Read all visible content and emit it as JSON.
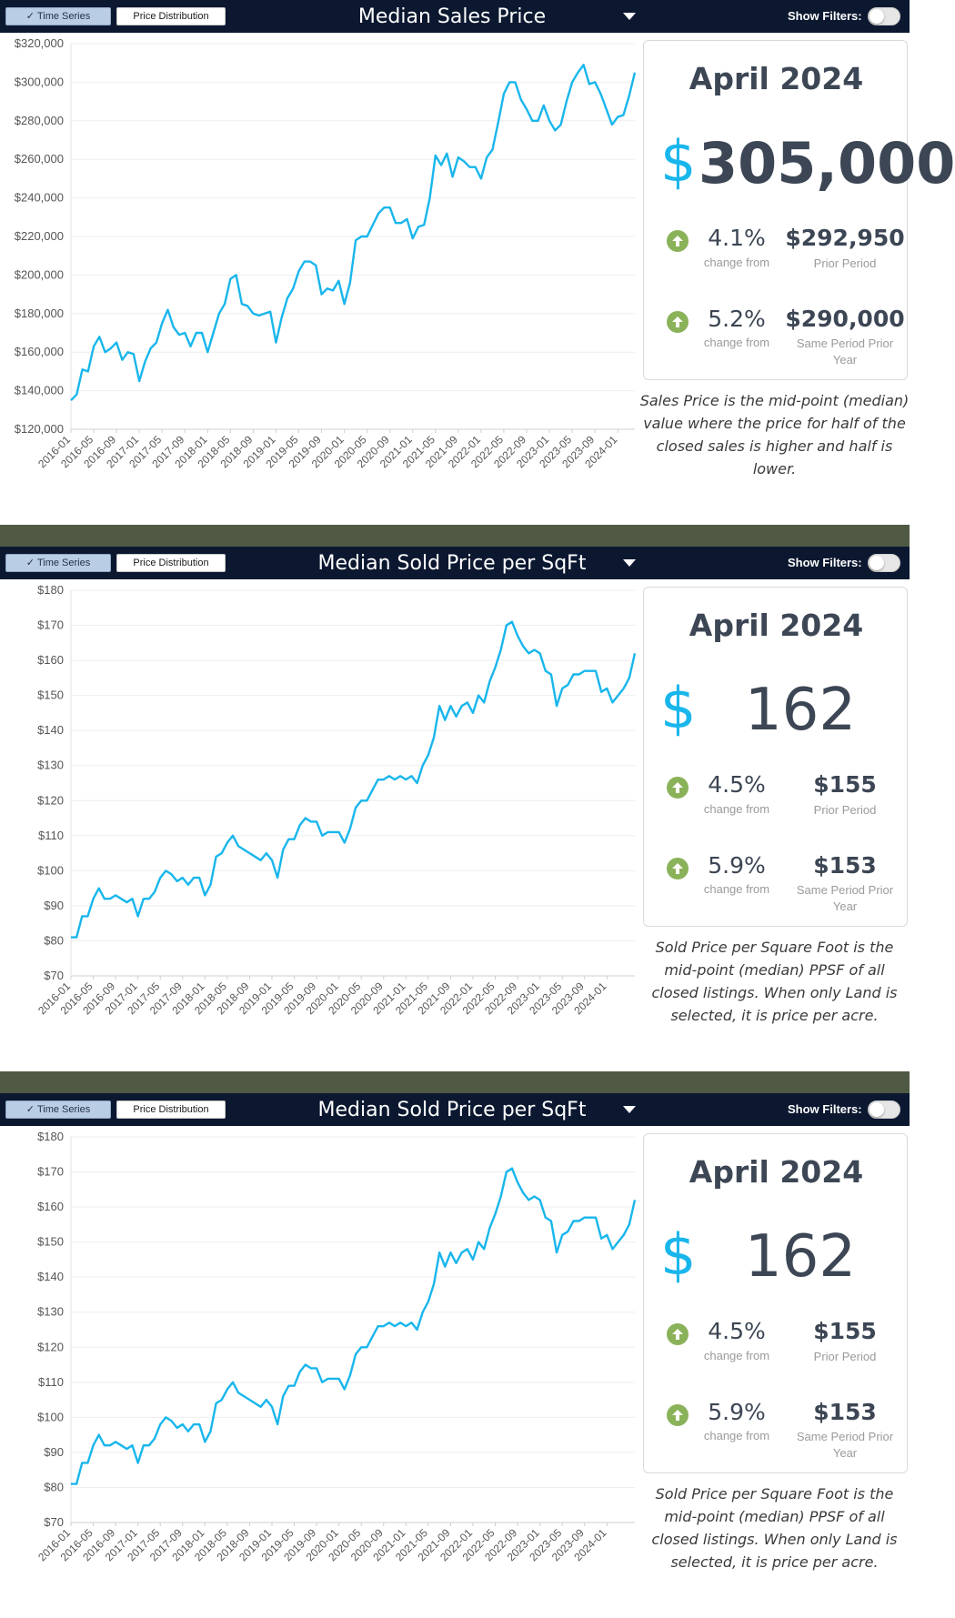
{
  "panels": [
    {
      "tabs": {
        "time_series": "Time Series",
        "price_distribution": "Price Distribution"
      },
      "title": "Median Sales Price",
      "show_filters_label": "Show Filters:",
      "card": {
        "period": "April 2024",
        "currency_symbol": "$",
        "value": "305,000",
        "stats": [
          {
            "icon": "arrow-up-icon",
            "pct": "4.1%",
            "pct_label": "change from",
            "value": "$292,950",
            "caption": "Prior Period"
          },
          {
            "icon": "arrow-up-icon",
            "pct": "5.2%",
            "pct_label": "change from",
            "value": "$290,000",
            "caption": "Same Period Prior Year"
          }
        ],
        "up_color": "#8ab259"
      },
      "description": "Sales Price is the mid-point (median) value where the price for half of the closed sales is higher and half is lower.",
      "chart_data": {
        "type": "line",
        "title": "Median Sales Price",
        "x_start": "2016-01",
        "x_tick_labels": [
          "2016-01",
          "2016-05",
          "2016-09",
          "2017-01",
          "2017-05",
          "2017-09",
          "2018-01",
          "2018-05",
          "2018-09",
          "2019-01",
          "2019-05",
          "2019-09",
          "2020-01",
          "2020-05",
          "2020-09",
          "2021-01",
          "2021-05",
          "2021-09",
          "2022-01",
          "2022-05",
          "2022-09",
          "2023-01",
          "2023-05",
          "2023-09",
          "2024-01"
        ],
        "y_ticks": [
          120000,
          140000,
          160000,
          180000,
          200000,
          220000,
          240000,
          260000,
          280000,
          300000,
          320000
        ],
        "y_tick_labels": [
          "$120,000",
          "$140,000",
          "$160,000",
          "$180,000",
          "$200,000",
          "$220,000",
          "$240,000",
          "$260,000",
          "$280,000",
          "$300,000",
          "$320,000"
        ],
        "ylim": [
          120000,
          320000
        ],
        "grid": true,
        "color": "#19b6ec",
        "values": [
          135000,
          138000,
          151000,
          150000,
          163000,
          168000,
          160000,
          162000,
          165000,
          156000,
          160000,
          159000,
          145000,
          155000,
          162000,
          165000,
          175000,
          182000,
          173000,
          169000,
          170000,
          163000,
          170000,
          170000,
          160000,
          170000,
          180000,
          185000,
          198000,
          200000,
          185000,
          184000,
          180000,
          179000,
          180000,
          181000,
          165000,
          178000,
          188000,
          193000,
          202000,
          207000,
          207000,
          205000,
          190000,
          193000,
          192000,
          197000,
          185000,
          196000,
          218000,
          220000,
          220000,
          226000,
          232000,
          235000,
          235000,
          227000,
          227000,
          229000,
          219000,
          225000,
          226000,
          240000,
          262000,
          257000,
          263000,
          251000,
          261000,
          259000,
          256000,
          256000,
          250000,
          261000,
          265000,
          279000,
          294000,
          300000,
          300000,
          291000,
          286000,
          280000,
          280000,
          288000,
          280000,
          275000,
          278000,
          290000,
          300000,
          305000,
          309000,
          299000,
          300000,
          294000,
          286000,
          278000,
          282000,
          283000,
          293000,
          305000
        ]
      }
    },
    {
      "tabs": {
        "time_series": "Time Series",
        "price_distribution": "Price Distribution"
      },
      "title": "Median Sold Price per SqFt",
      "show_filters_label": "Show Filters:",
      "card": {
        "period": "April 2024",
        "currency_symbol": "$",
        "value": "162",
        "stats": [
          {
            "icon": "arrow-up-icon",
            "pct": "4.5%",
            "pct_label": "change from",
            "value": "$155",
            "caption": "Prior Period"
          },
          {
            "icon": "arrow-up-icon",
            "pct": "5.9%",
            "pct_label": "change from",
            "value": "$153",
            "caption": "Same Period Prior Year"
          }
        ],
        "up_color": "#8ab259"
      },
      "description": "Sold Price per Square Foot is the mid-point (median) PPSF of all closed listings. When only Land is selected, it is price per acre.",
      "chart_data": {
        "type": "line",
        "title": "Median Sold Price per SqFt",
        "x_start": "2016-01",
        "x_tick_labels": [
          "2016-01",
          "2016-05",
          "2016-09",
          "2017-01",
          "2017-05",
          "2017-09",
          "2018-01",
          "2018-05",
          "2018-09",
          "2019-01",
          "2019-05",
          "2019-09",
          "2020-01",
          "2020-05",
          "2020-09",
          "2021-01",
          "2021-05",
          "2021-09",
          "2022-01",
          "2022-05",
          "2022-09",
          "2023-01",
          "2023-05",
          "2023-09",
          "2024-01"
        ],
        "y_ticks": [
          70,
          80,
          90,
          100,
          110,
          120,
          130,
          140,
          150,
          160,
          170,
          180
        ],
        "y_tick_labels": [
          "$70",
          "$80",
          "$90",
          "$100",
          "$110",
          "$120",
          "$130",
          "$140",
          "$150",
          "$160",
          "$170",
          "$180"
        ],
        "ylim": [
          70,
          180
        ],
        "grid": true,
        "color": "#19b6ec",
        "values": [
          81,
          81,
          87,
          87,
          92,
          95,
          92,
          92,
          93,
          92,
          91,
          92,
          87,
          92,
          92,
          94,
          98,
          100,
          99,
          97,
          98,
          96,
          98,
          98,
          93,
          96,
          104,
          105,
          108,
          110,
          107,
          106,
          105,
          104,
          103,
          105,
          103,
          98,
          106,
          109,
          109,
          113,
          115,
          114,
          114,
          110,
          111,
          111,
          111,
          108,
          112,
          118,
          120,
          120,
          123,
          126,
          126,
          127,
          126,
          127,
          126,
          127,
          125,
          130,
          133,
          138,
          147,
          143,
          147,
          144,
          147,
          148,
          145,
          150,
          148,
          154,
          158,
          163,
          170,
          171,
          167,
          164,
          162,
          163,
          162,
          157,
          156,
          147,
          152,
          153,
          156,
          156,
          157,
          157,
          157,
          151,
          152,
          148,
          150,
          152,
          155,
          162
        ]
      }
    },
    {
      "tabs": {
        "time_series": "Time Series",
        "price_distribution": "Price Distribution"
      },
      "title": "Median Sold Price per SqFt",
      "show_filters_label": "Show Filters:",
      "card": {
        "period": "April 2024",
        "currency_symbol": "$",
        "value": "162",
        "stats": [
          {
            "icon": "arrow-up-icon",
            "pct": "4.5%",
            "pct_label": "change from",
            "value": "$155",
            "caption": "Prior Period"
          },
          {
            "icon": "arrow-up-icon",
            "pct": "5.9%",
            "pct_label": "change from",
            "value": "$153",
            "caption": "Same Period Prior Year"
          }
        ],
        "up_color": "#8ab259"
      },
      "description": "Sold Price per Square Foot is the mid-point (median) PPSF of all closed listings. When only Land is selected, it is price per acre.",
      "chart_data": {
        "type": "line",
        "title": "Median Sold Price per SqFt",
        "x_start": "2016-01",
        "x_tick_labels": [
          "2016-01",
          "2016-05",
          "2016-09",
          "2017-01",
          "2017-05",
          "2017-09",
          "2018-01",
          "2018-05",
          "2018-09",
          "2019-01",
          "2019-05",
          "2019-09",
          "2020-01",
          "2020-05",
          "2020-09",
          "2021-01",
          "2021-05",
          "2021-09",
          "2022-01",
          "2022-05",
          "2022-09",
          "2023-01",
          "2023-05",
          "2023-09",
          "2024-01"
        ],
        "y_ticks": [
          70,
          80,
          90,
          100,
          110,
          120,
          130,
          140,
          150,
          160,
          170,
          180
        ],
        "y_tick_labels": [
          "$70",
          "$80",
          "$90",
          "$100",
          "$110",
          "$120",
          "$130",
          "$140",
          "$150",
          "$160",
          "$170",
          "$180"
        ],
        "ylim": [
          70,
          180
        ],
        "grid": true,
        "color": "#19b6ec",
        "values": [
          81,
          81,
          87,
          87,
          92,
          95,
          92,
          92,
          93,
          92,
          91,
          92,
          87,
          92,
          92,
          94,
          98,
          100,
          99,
          97,
          98,
          96,
          98,
          98,
          93,
          96,
          104,
          105,
          108,
          110,
          107,
          106,
          105,
          104,
          103,
          105,
          103,
          98,
          106,
          109,
          109,
          113,
          115,
          114,
          114,
          110,
          111,
          111,
          111,
          108,
          112,
          118,
          120,
          120,
          123,
          126,
          126,
          127,
          126,
          127,
          126,
          127,
          125,
          130,
          133,
          138,
          147,
          143,
          147,
          144,
          147,
          148,
          145,
          150,
          148,
          154,
          158,
          163,
          170,
          171,
          167,
          164,
          162,
          163,
          162,
          157,
          156,
          147,
          152,
          153,
          156,
          156,
          157,
          157,
          157,
          151,
          152,
          148,
          150,
          152,
          155,
          162
        ]
      }
    }
  ]
}
